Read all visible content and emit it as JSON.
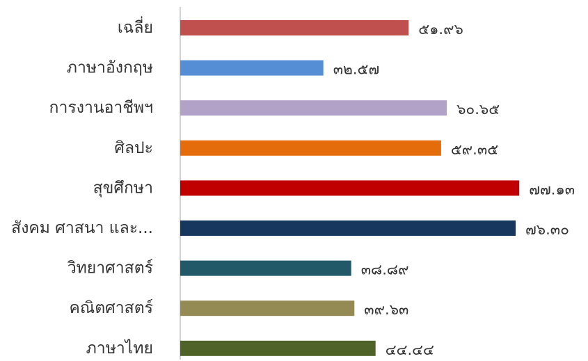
{
  "chart_data": {
    "type": "bar",
    "orientation": "horizontal",
    "categories": [
      "เฉลี่ย",
      "ภาษาอังกฤษ",
      "การงานอาชีพฯ",
      "ศิลปะ",
      "สุขศึกษา",
      "สังคม ศาสนา และ...",
      "วิทยาศาสตร์",
      "คณิตศาสตร์",
      "ภาษาไทย"
    ],
    "values": [
      51.96,
      32.57,
      60.65,
      59.35,
      77.13,
      76.3,
      38.89,
      39.63,
      44.44
    ],
    "value_labels": [
      "๕๑.๙๖",
      "๓๒.๕๗",
      "๖๐.๖๕",
      "๕๙.๓๕",
      "๗๗.๑๓",
      "๗๖.๓๐",
      "๓๘.๘๙",
      "๓๙.๖๓",
      "๔๔.๔๔"
    ],
    "colors": [
      "#c0504d",
      "#558ed5",
      "#b2a2c7",
      "#e46c0a",
      "#c00000",
      "#17375e",
      "#215968",
      "#948a54",
      "#4f6228"
    ],
    "title": "",
    "xlabel": "",
    "ylabel": "",
    "xlim": [
      0,
      80
    ],
    "grid": false,
    "legend": "none"
  }
}
